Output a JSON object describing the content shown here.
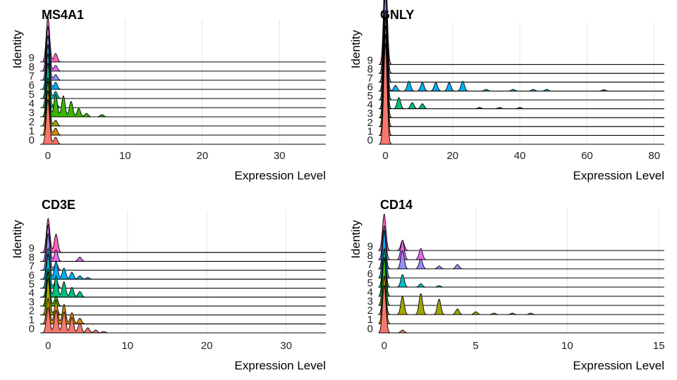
{
  "chart_data": [
    {
      "type": "ridgeline",
      "title": "MS4A1",
      "xlabel": "Expression Level",
      "ylabel": "Identity",
      "xlim": [
        -1,
        36
      ],
      "xticks": [
        0,
        10,
        20,
        30
      ],
      "categories": [
        "0",
        "1",
        "2",
        "3",
        "4",
        "5",
        "6",
        "7",
        "8",
        "9"
      ],
      "peaks": {
        "0": [
          [
            0,
            1.6
          ],
          [
            1,
            0.25
          ]
        ],
        "1": [
          [
            0,
            1.6
          ],
          [
            1,
            0.25
          ]
        ],
        "2": [
          [
            0,
            1.6
          ],
          [
            1,
            0.2
          ]
        ],
        "3": [
          [
            0,
            1.4
          ],
          [
            1,
            0.8
          ],
          [
            2,
            0.75
          ],
          [
            3,
            0.55
          ],
          [
            4,
            0.3
          ],
          [
            5,
            0.12
          ],
          [
            7,
            0.08
          ]
        ],
        "4": [
          [
            0,
            1.6
          ],
          [
            1,
            0.2
          ]
        ],
        "5": [
          [
            0,
            1.6
          ],
          [
            1,
            0.25
          ]
        ],
        "6": [
          [
            0,
            1.6
          ],
          [
            1,
            0.25
          ]
        ],
        "7": [
          [
            0,
            1.6
          ],
          [
            1,
            0.2
          ]
        ],
        "8": [
          [
            0,
            1.6
          ],
          [
            1,
            0.2
          ]
        ],
        "9": [
          [
            0,
            1.6
          ],
          [
            1,
            0.3
          ]
        ]
      }
    },
    {
      "type": "ridgeline",
      "title": "GNLY",
      "xlabel": "Expression Level",
      "ylabel": "Identity",
      "xlim": [
        -2,
        83
      ],
      "xticks": [
        0,
        20,
        40,
        60,
        80
      ],
      "categories": [
        "0",
        "1",
        "2",
        "3",
        "4",
        "5",
        "6",
        "7",
        "8",
        "9"
      ],
      "peaks": {
        "0": [
          [
            0,
            3.6
          ]
        ],
        "1": [
          [
            0,
            3.6
          ]
        ],
        "2": [
          [
            0,
            3.6
          ]
        ],
        "3": [
          [
            0,
            3.6
          ]
        ],
        "4": [
          [
            0,
            3.2
          ],
          [
            4,
            0.4
          ],
          [
            8,
            0.22
          ],
          [
            11,
            0.18
          ],
          [
            28,
            0.05
          ],
          [
            34,
            0.05
          ],
          [
            40,
            0.05
          ]
        ],
        "5": [
          [
            0,
            3.2
          ]
        ],
        "6": [
          [
            0,
            2.8
          ],
          [
            3,
            0.2
          ],
          [
            7,
            0.35
          ],
          [
            11,
            0.3
          ],
          [
            15,
            0.3
          ],
          [
            19,
            0.3
          ],
          [
            23,
            0.35
          ],
          [
            30,
            0.06
          ],
          [
            38,
            0.06
          ],
          [
            44,
            0.06
          ],
          [
            48,
            0.06
          ],
          [
            65,
            0.05
          ]
        ],
        "7": [
          [
            0,
            3.2
          ]
        ],
        "8": [
          [
            0,
            3.2
          ]
        ],
        "9": [
          [
            0,
            3.6
          ]
        ]
      }
    },
    {
      "type": "ridgeline",
      "title": "CD3E",
      "xlabel": "Expression Level",
      "ylabel": "Identity",
      "xlim": [
        -1,
        35
      ],
      "xticks": [
        0,
        10,
        20,
        30
      ],
      "categories": [
        "0",
        "1",
        "2",
        "3",
        "4",
        "5",
        "6",
        "7",
        "8",
        "9"
      ],
      "peaks": {
        "0": [
          [
            0,
            0.9
          ],
          [
            1,
            0.8
          ],
          [
            2,
            0.75
          ],
          [
            3,
            0.55
          ],
          [
            4,
            0.35
          ],
          [
            5,
            0.18
          ],
          [
            6,
            0.1
          ],
          [
            7,
            0.05
          ]
        ],
        "1": [
          [
            0,
            0.9
          ],
          [
            1,
            0.85
          ],
          [
            2,
            0.7
          ],
          [
            3,
            0.4
          ],
          [
            4,
            0.2
          ]
        ],
        "2": [
          [
            0,
            1.3
          ],
          [
            1,
            0.3
          ]
        ],
        "3": [
          [
            0,
            1.2
          ],
          [
            1,
            0.35
          ]
        ],
        "4": [
          [
            0,
            1.0
          ],
          [
            1,
            0.75
          ],
          [
            2,
            0.55
          ],
          [
            3,
            0.35
          ],
          [
            4,
            0.2
          ]
        ],
        "5": [
          [
            0,
            1.2
          ],
          [
            1,
            0.3
          ]
        ],
        "6": [
          [
            0,
            1.1
          ],
          [
            1,
            0.65
          ],
          [
            2,
            0.4
          ],
          [
            3,
            0.25
          ],
          [
            4,
            0.12
          ],
          [
            5,
            0.06
          ]
        ],
        "7": [
          [
            0,
            1.3
          ],
          [
            1,
            0.25
          ]
        ],
        "8": [
          [
            0,
            1.3
          ],
          [
            1,
            0.4
          ],
          [
            4,
            0.15
          ]
        ],
        "9": [
          [
            0,
            1.2
          ],
          [
            1,
            0.65
          ]
        ]
      }
    },
    {
      "type": "ridgeline",
      "title": "CD14",
      "xlabel": "Expression Level",
      "ylabel": "Identity",
      "xlim": [
        -0.3,
        15.3
      ],
      "xticks": [
        0,
        5,
        10,
        15
      ],
      "categories": [
        "0",
        "1",
        "2",
        "3",
        "4",
        "5",
        "6",
        "7",
        "8",
        "9"
      ],
      "peaks": {
        "0": [
          [
            0,
            1.7
          ],
          [
            1,
            0.1
          ]
        ],
        "1": [
          [
            0,
            1.7
          ]
        ],
        "2": [
          [
            0,
            1.2
          ],
          [
            1,
            0.65
          ],
          [
            2,
            0.75
          ],
          [
            3,
            0.55
          ],
          [
            4,
            0.2
          ],
          [
            5,
            0.1
          ],
          [
            6,
            0.05
          ],
          [
            7,
            0.05
          ],
          [
            8,
            0.05
          ]
        ],
        "3": [
          [
            0,
            1.7
          ]
        ],
        "4": [
          [
            0,
            1.7
          ]
        ],
        "5": [
          [
            0,
            1.3
          ],
          [
            1,
            0.45
          ],
          [
            2,
            0.12
          ],
          [
            3,
            0.05
          ]
        ],
        "6": [
          [
            0,
            1.7
          ]
        ],
        "7": [
          [
            0,
            1.2
          ],
          [
            1,
            0.65
          ],
          [
            2,
            0.35
          ],
          [
            3,
            0.1
          ],
          [
            4,
            0.15
          ]
        ],
        "8": [
          [
            0,
            1.2
          ],
          [
            1,
            0.7
          ],
          [
            2,
            0.4
          ]
        ],
        "9": [
          [
            0,
            1.3
          ],
          [
            1,
            0.35
          ]
        ]
      }
    }
  ],
  "colors": [
    "#F8766D",
    "#D89000",
    "#A3A500",
    "#39B600",
    "#00BF7D",
    "#00BFC4",
    "#00B0F6",
    "#9590FF",
    "#E76BF3",
    "#FF62BC"
  ]
}
